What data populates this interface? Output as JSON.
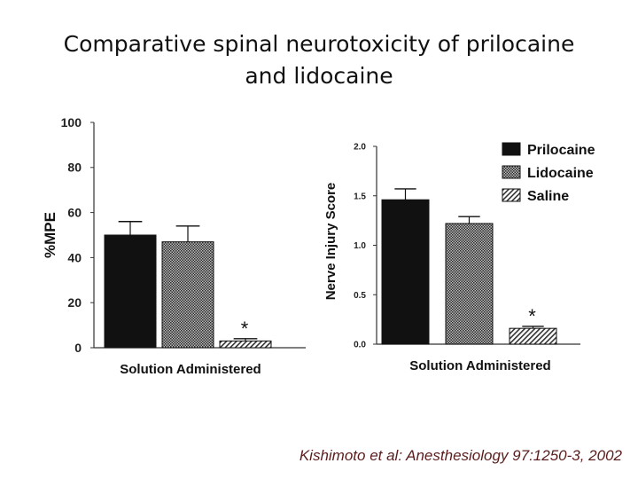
{
  "slide": {
    "title_line1": "Comparative spinal neurotoxicity of prilocaine",
    "title_line2": "and lidocaine",
    "citation": "Kishimoto et al: Anesthesiology 97:1250-3, 2002"
  },
  "chart_data": [
    {
      "type": "bar",
      "title": "",
      "xlabel": "Solution Administered",
      "ylabel": "%MPE",
      "ylim": [
        0,
        100
      ],
      "yticks": [
        0,
        20,
        40,
        60,
        80,
        100
      ],
      "grid": false,
      "categories": [
        "Prilocaine",
        "Lidocaine",
        "Saline"
      ],
      "values": [
        50,
        47,
        3
      ],
      "errors": [
        6,
        7,
        1
      ],
      "annotations": [
        {
          "category": "Saline",
          "text": "*"
        }
      ],
      "colors": [
        "#111111",
        "#8a8a8a",
        "#c4c4c4"
      ]
    },
    {
      "type": "bar",
      "title": "",
      "xlabel": "Solution Administered",
      "ylabel": "Nerve Injury Score",
      "ylim": [
        0,
        2
      ],
      "yticks": [
        "0.0",
        "0.5",
        "1.0",
        "1.5",
        "2.0"
      ],
      "grid": false,
      "categories": [
        "Prilocaine",
        "Lidocaine",
        "Saline"
      ],
      "values": [
        1.46,
        1.22,
        0.16
      ],
      "errors": [
        0.11,
        0.07,
        0.02
      ],
      "annotations": [
        {
          "category": "Saline",
          "text": "*"
        }
      ],
      "legend": {
        "position": "top-right",
        "entries": [
          "Prilocaine",
          "Lidocaine",
          "Saline"
        ]
      },
      "colors": [
        "#111111",
        "#8a8a8a",
        "#c4c4c4"
      ]
    }
  ]
}
